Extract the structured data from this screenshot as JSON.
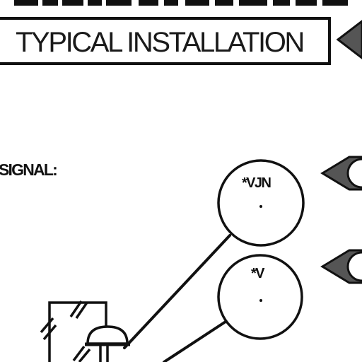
{
  "header": {
    "title": "TYPICAL INSTALLATION"
  },
  "labels": {
    "signal": "SIGNAL:"
  },
  "bubbles": [
    {
      "tag": "*VJN"
    },
    {
      "tag": "*V"
    }
  ],
  "colors": {
    "ink": "#111111",
    "paper": "#ffffff",
    "marker_fill": "#555555"
  }
}
